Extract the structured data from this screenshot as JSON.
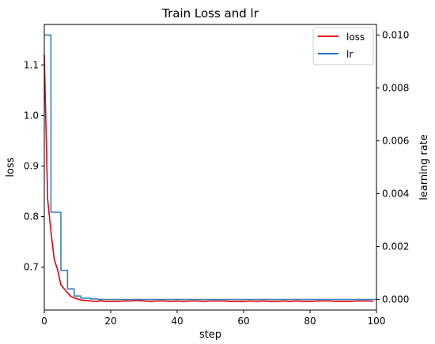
{
  "chart_data": {
    "type": "line",
    "title": "Train Loss and lr",
    "xlabel": "step",
    "ylabel_left": "loss",
    "ylabel_right": "learning rate",
    "xlim": [
      0,
      100
    ],
    "ylim_left": [
      0.615,
      1.18
    ],
    "ylim_right": [
      -0.0004,
      0.0104
    ],
    "x_ticks": [
      0,
      20,
      40,
      60,
      80,
      100
    ],
    "y_left_ticks": [
      0.7,
      0.8,
      0.9,
      1.0,
      1.1
    ],
    "y_right_ticks": [
      0.0,
      0.002,
      0.004,
      0.006,
      0.008,
      0.01
    ],
    "x_tick_labels": [
      "0",
      "20",
      "40",
      "60",
      "80",
      "100"
    ],
    "y_left_tick_labels": [
      "0.7",
      "0.8",
      "0.9",
      "1.0",
      "1.1"
    ],
    "y_right_tick_labels": [
      "0.000",
      "0.002",
      "0.004",
      "0.006",
      "0.008",
      "0.010"
    ],
    "legend_position": "top-right",
    "grid": false,
    "series": [
      {
        "name": "loss",
        "axis": "left",
        "color": "#e8000b",
        "x": [
          0,
          1,
          2,
          3,
          4,
          5,
          6,
          7,
          8,
          9,
          10,
          11,
          12,
          13,
          14,
          15,
          16,
          17,
          18,
          19,
          20,
          22,
          24,
          26,
          28,
          30,
          32,
          34,
          36,
          38,
          40,
          42,
          44,
          46,
          48,
          50,
          52,
          54,
          56,
          58,
          60,
          62,
          64,
          66,
          68,
          70,
          72,
          74,
          76,
          78,
          80,
          82,
          84,
          86,
          88,
          90,
          92,
          94,
          96,
          98,
          99
        ],
        "values": [
          1.12,
          0.835,
          0.77,
          0.715,
          0.695,
          0.665,
          0.657,
          0.649,
          0.642,
          0.639,
          0.637,
          0.635,
          0.634,
          0.634,
          0.633,
          0.632,
          0.632,
          0.634,
          0.632,
          0.632,
          0.632,
          0.632,
          0.633,
          0.633,
          0.634,
          0.633,
          0.632,
          0.633,
          0.633,
          0.632,
          0.633,
          0.632,
          0.633,
          0.633,
          0.632,
          0.633,
          0.633,
          0.633,
          0.632,
          0.632,
          0.632,
          0.633,
          0.632,
          0.633,
          0.632,
          0.632,
          0.633,
          0.632,
          0.633,
          0.632,
          0.632,
          0.633,
          0.633,
          0.633,
          0.632,
          0.632,
          0.632,
          0.633,
          0.633,
          0.633,
          0.632
        ]
      },
      {
        "name": "lr",
        "axis": "right",
        "color": "#1f77b4",
        "step": true,
        "x": [
          0,
          2,
          2,
          5,
          5,
          7,
          7,
          9,
          9,
          11,
          11,
          14,
          14,
          16,
          16,
          18,
          18,
          100
        ],
        "values": [
          0.01,
          0.01,
          0.0033,
          0.0033,
          0.0011,
          0.0011,
          0.0004,
          0.0004,
          0.00013,
          0.00013,
          5e-05,
          5e-05,
          2e-05,
          2e-05,
          5e-06,
          5e-06,
          1e-06,
          1e-06
        ]
      }
    ]
  }
}
